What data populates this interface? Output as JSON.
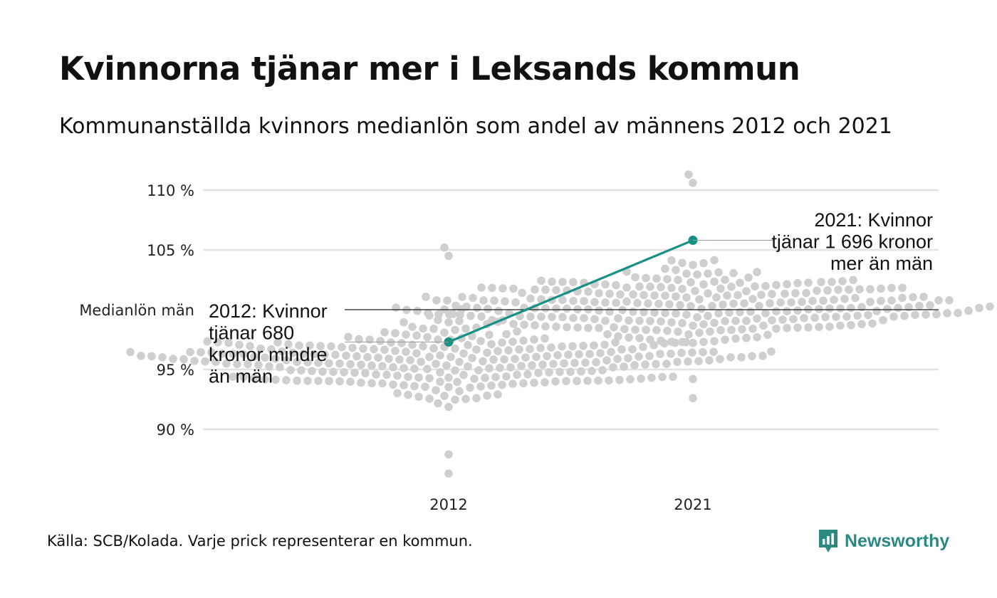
{
  "title": "Kvinnorna tjänar mer i Leksands kommun",
  "subtitle": "Kommunanställda kvinnors medianlön som andel av männens 2012 och 2021",
  "footer": {
    "source": "Källa: SCB/Kolada. Varje prick representerar en kommun.",
    "brand": "Newsworthy"
  },
  "colors": {
    "highlight": "#1a8f84",
    "dots": "#cfcfcf",
    "grid": "#e3e3e3",
    "reference": "#222222"
  },
  "chart_data": {
    "type": "scatter",
    "title": "Kvinnorna tjänar mer i Leksands kommun",
    "ylim": [
      85,
      112
    ],
    "yticks": [
      {
        "value": 90,
        "label": "90 %"
      },
      {
        "value": 95,
        "label": "95 %"
      },
      {
        "value": 105,
        "label": "105 %"
      },
      {
        "value": 110,
        "label": "110 %"
      }
    ],
    "reference_line": {
      "value": 100,
      "label": "Medianlön män"
    },
    "categories": [
      "2012",
      "2021"
    ],
    "distribution": [
      {
        "category": "2012",
        "min": 86.3,
        "max": 105.2,
        "center": 95.8,
        "count": 290
      },
      {
        "category": "2021",
        "min": 92.6,
        "max": 111.3,
        "center": 100.2,
        "count": 290
      }
    ],
    "highlight": {
      "name": "Leksand",
      "values": [
        97.3,
        105.8
      ]
    },
    "annotations": [
      {
        "category": "2012",
        "value": 97.3,
        "lines": [
          "2012: Kvinnor",
          "tjänar 680",
          "kronor mindre",
          "än män"
        ]
      },
      {
        "category": "2021",
        "value": 105.8,
        "lines": [
          "2021: Kvinnor",
          "tjänar 1 696 kronor",
          "mer än män"
        ]
      }
    ],
    "grid": true
  }
}
